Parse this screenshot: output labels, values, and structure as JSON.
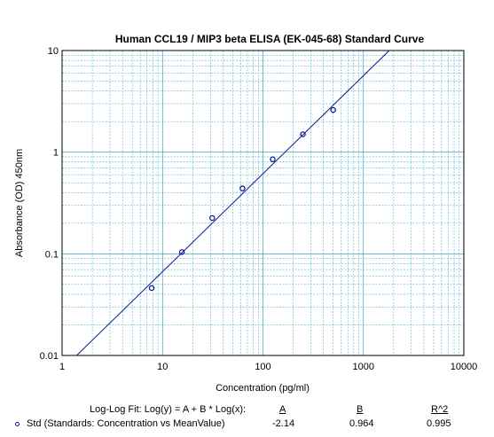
{
  "chart_data": {
    "type": "scatter",
    "title": "Human CCL19 / MIP3 beta ELISA  (EK-045-68) Standard Curve",
    "xlabel": "Concentration (pg/ml)",
    "ylabel": "Absorbance (OD) 450nm",
    "xscale": "log",
    "yscale": "log",
    "xlim": [
      1,
      10000
    ],
    "ylim": [
      0.01,
      10
    ],
    "x_ticks": [
      "1",
      "10",
      "100",
      "1000",
      "10000"
    ],
    "y_ticks": [
      "0.01",
      "0.1",
      "1",
      "10"
    ],
    "grid": true,
    "series": [
      {
        "name": "Std (Standards: Concentration vs MeanValue)",
        "x": [
          7.8,
          15.6,
          31.25,
          62.5,
          125,
          250,
          500
        ],
        "y": [
          0.046,
          0.104,
          0.225,
          0.44,
          0.85,
          1.5,
          2.6
        ]
      }
    ],
    "fit": {
      "equation": "Log-Log Fit: Log(y) = A + B * Log(x):",
      "A_label": "A",
      "B_label": "B",
      "R2_label": "R^2",
      "A": "-2.14",
      "B": "0.964",
      "R2": "0.995"
    }
  }
}
